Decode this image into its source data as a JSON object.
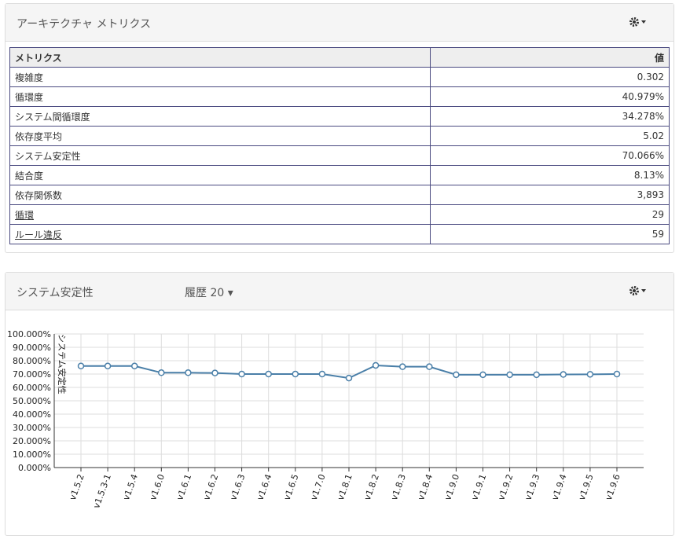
{
  "panel1": {
    "title": "アーキテクチャ メトリクス"
  },
  "table": {
    "header": [
      "メトリクス",
      "値"
    ],
    "rows": [
      [
        "複雑度",
        "0.302"
      ],
      [
        "循環度",
        "40.979%"
      ],
      [
        "システム間循環度",
        "34.278%"
      ],
      [
        "依存度平均",
        "5.02"
      ],
      [
        "システム安定性",
        "70.066%"
      ],
      [
        "結合度",
        "8.13%"
      ],
      [
        "依存関係数",
        "3,893"
      ],
      [
        "循環",
        "29"
      ],
      [
        "ルール違反",
        "59"
      ]
    ]
  },
  "panel2": {
    "title": "システム安定性",
    "history_label": "履歴 20"
  },
  "chart_data": {
    "type": "line",
    "y_label": "システム安定性",
    "categories": [
      "v1.5.2",
      "v1.5.3-1",
      "v1.5.4",
      "v1.6.0",
      "v1.6.1",
      "v1.6.2",
      "v1.6.3",
      "v1.6.4",
      "v1.6.5",
      "v1.7.0",
      "v1.8.1",
      "v1.8.2",
      "v1.8.3",
      "v1.8.4",
      "v1.9.0",
      "v1.9.1",
      "v1.9.2",
      "v1.9.3",
      "v1.9.4",
      "v1.9.5",
      "v1.9.6"
    ],
    "series": [
      {
        "name": "システム安定性",
        "color": "#4a7fa8",
        "values": [
          76,
          76,
          76,
          71,
          71,
          70.8,
          70,
          70,
          70,
          70,
          67,
          76.5,
          75.5,
          75.5,
          69.5,
          69.5,
          69.5,
          69.5,
          69.7,
          69.8,
          70
        ]
      }
    ],
    "ylim": [
      0,
      100
    ],
    "yticks": [
      {
        "value": 0,
        "label": "0.000%"
      },
      {
        "value": 10,
        "label": "10.000%"
      },
      {
        "value": 20,
        "label": "20.000%"
      },
      {
        "value": 30,
        "label": "30.000%"
      },
      {
        "value": 40,
        "label": "40.000%"
      },
      {
        "value": 50,
        "label": "50.000%"
      },
      {
        "value": 60,
        "label": "60.000%"
      },
      {
        "value": 70,
        "label": "70.000%"
      },
      {
        "value": 80,
        "label": "80.000%"
      },
      {
        "value": 90,
        "label": "90.000%"
      },
      {
        "value": 100,
        "label": "100.000%"
      }
    ],
    "grid": true
  }
}
